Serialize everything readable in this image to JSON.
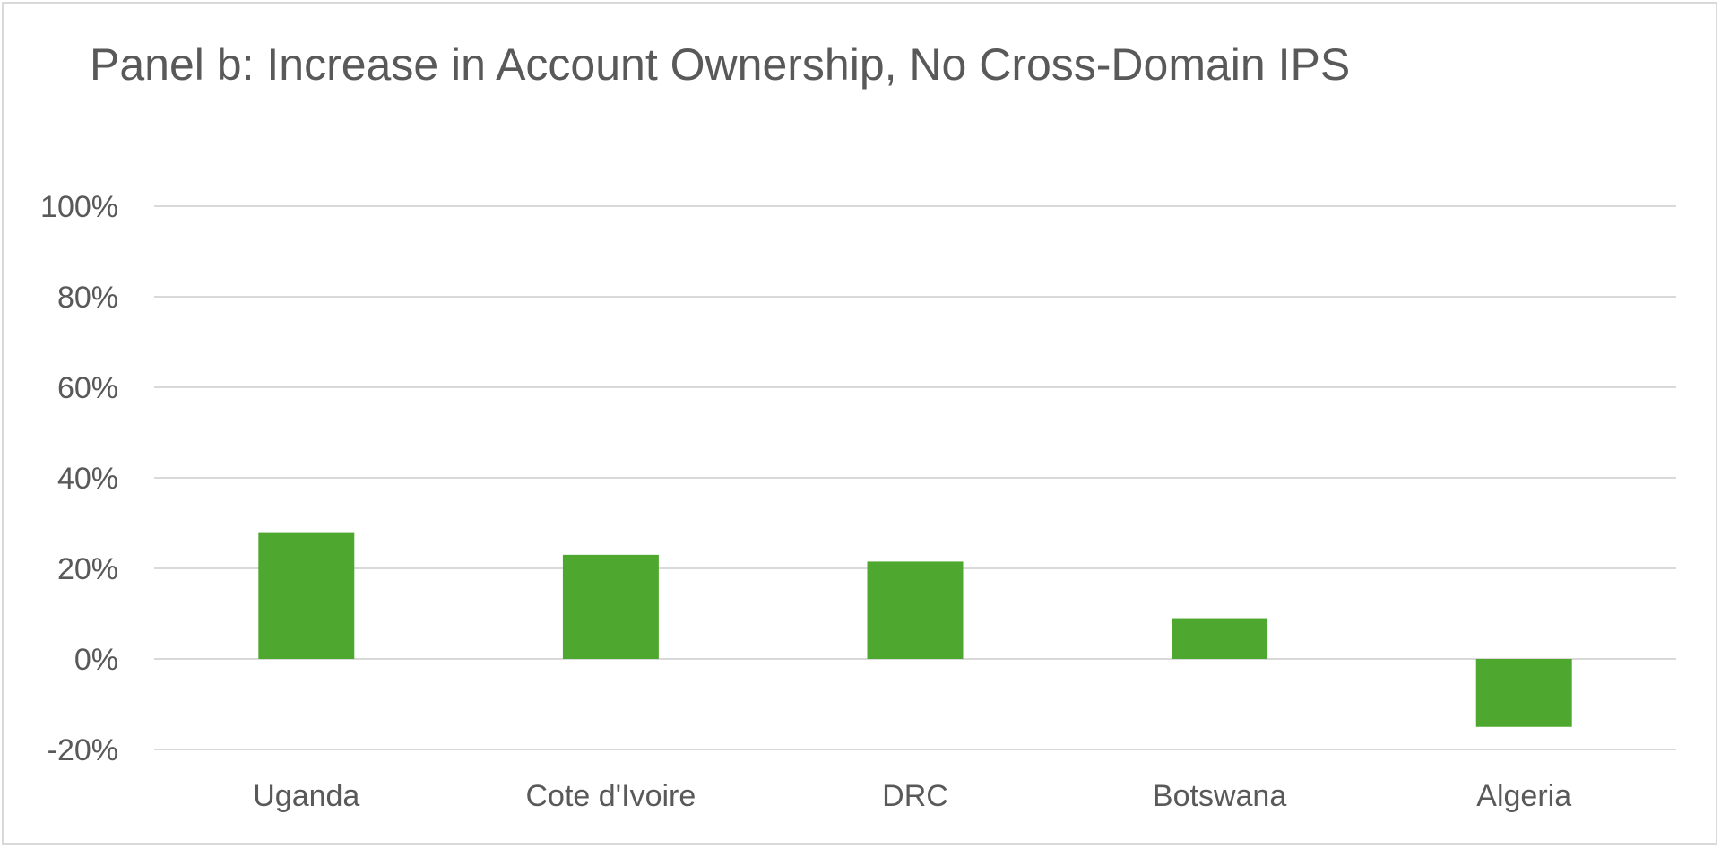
{
  "chart_data": {
    "type": "bar",
    "title": "Panel b: Increase in Account Ownership, No Cross-Domain IPS",
    "categories": [
      "Uganda",
      "Cote d'Ivoire",
      "DRC",
      "Botswana",
      "Algeria"
    ],
    "values": [
      28,
      23,
      21.5,
      9,
      -15
    ],
    "value_unit": "%",
    "xlabel": "",
    "ylabel": "",
    "ylim": [
      -20,
      100
    ],
    "yticks": [
      100,
      80,
      60,
      40,
      20,
      0,
      -20
    ],
    "ytick_labels": [
      "100%",
      "80%",
      "60%",
      "40%",
      "20%",
      "0%",
      "-20%"
    ],
    "grid": true,
    "legend": "none",
    "colors": {
      "bar": "#4ea72e",
      "grid": "#d9d9d9",
      "text": "#595959",
      "border": "#d9d9d9"
    }
  }
}
